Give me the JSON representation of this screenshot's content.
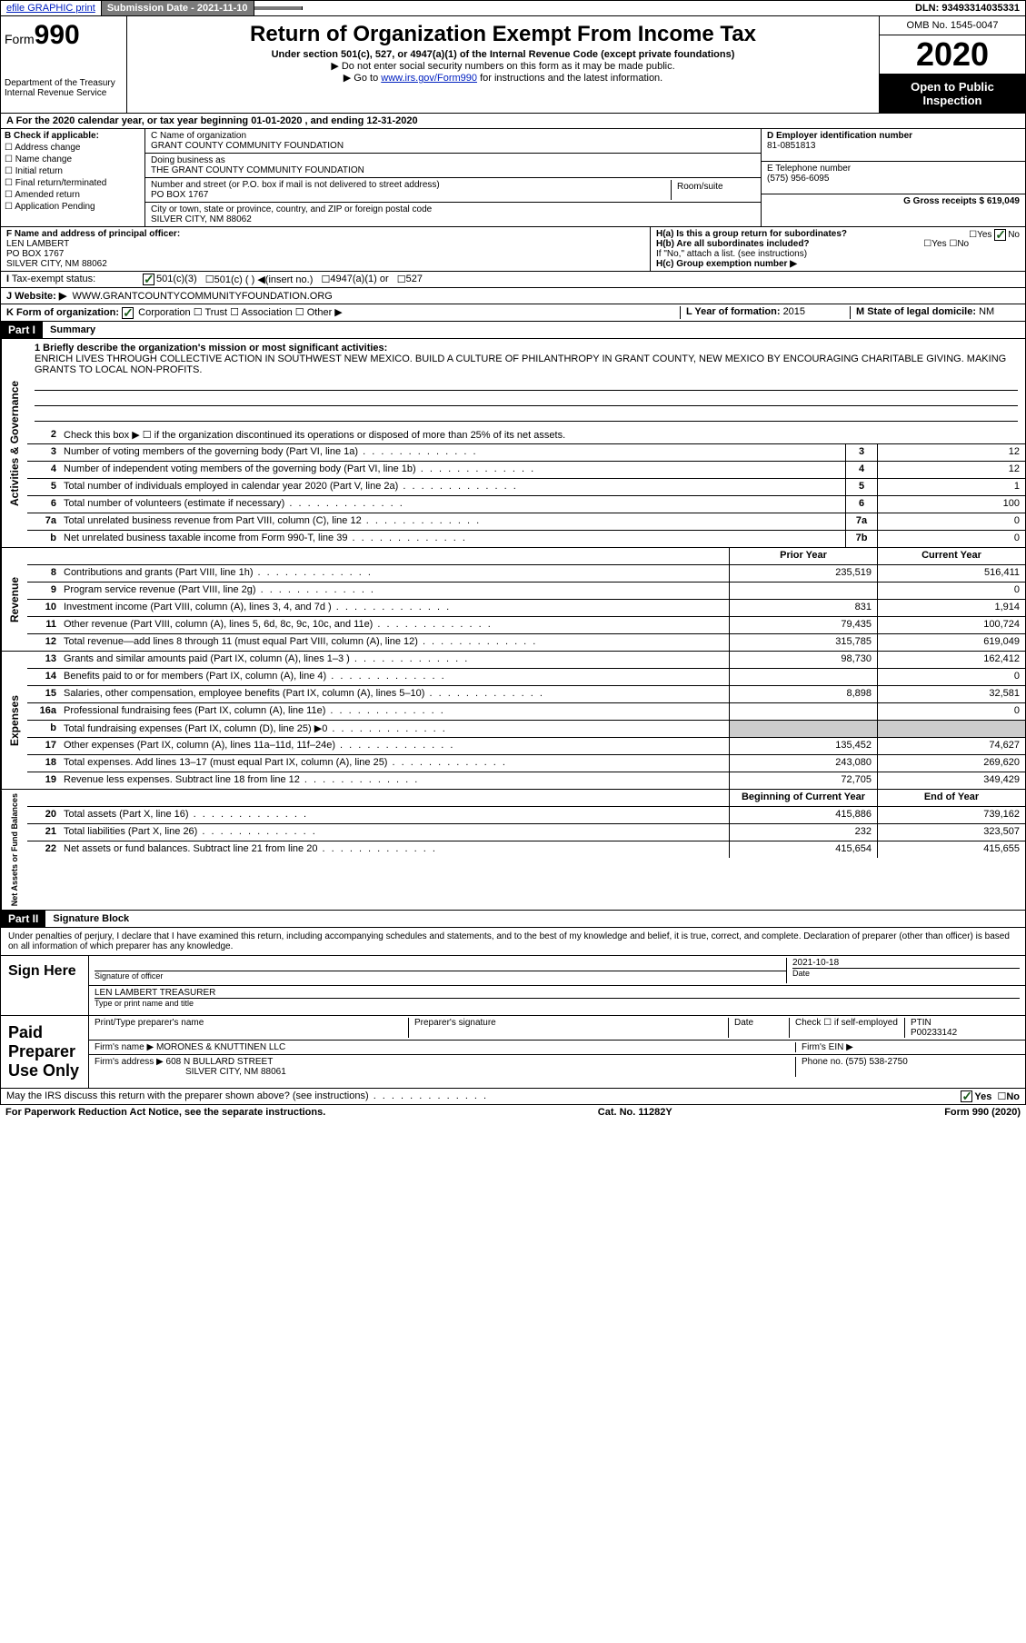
{
  "top_bar": {
    "efile": "efile GRAPHIC print",
    "submission_label": "Submission Date - 2021-11-10",
    "dln": "DLN: 93493314035331"
  },
  "header": {
    "form_prefix": "Form",
    "form_number": "990",
    "title": "Return of Organization Exempt From Income Tax",
    "subtitle": "Under section 501(c), 527, or 4947(a)(1) of the Internal Revenue Code (except private foundations)",
    "note1": "Do not enter social security numbers on this form as it may be made public.",
    "note2_prefix": "Go to ",
    "note2_link": "www.irs.gov/Form990",
    "note2_suffix": " for instructions and the latest information.",
    "dept": "Department of the Treasury\nInternal Revenue Service",
    "omb": "OMB No. 1545-0047",
    "year": "2020",
    "inspection": "Open to Public Inspection"
  },
  "row_a": "A For the 2020 calendar year, or tax year beginning 01-01-2020   , and ending 12-31-2020",
  "section_b": {
    "header": "B Check if applicable:",
    "items": [
      "Address change",
      "Name change",
      "Initial return",
      "Final return/terminated",
      "Amended return",
      "Application Pending"
    ]
  },
  "section_c": {
    "name_label": "C Name of organization",
    "name": "GRANT COUNTY COMMUNITY FOUNDATION",
    "dba_label": "Doing business as",
    "dba": "THE GRANT COUNTY COMMUNITY FOUNDATION",
    "addr_label": "Number and street (or P.O. box if mail is not delivered to street address)",
    "addr": "PO BOX 1767",
    "room_label": "Room/suite",
    "city_label": "City or town, state or province, country, and ZIP or foreign postal code",
    "city": "SILVER CITY, NM  88062"
  },
  "section_d": {
    "ein_label": "D Employer identification number",
    "ein": "81-0851813",
    "phone_label": "E Telephone number",
    "phone": "(575) 956-6095",
    "receipts_label": "G Gross receipts $ ",
    "receipts": "619,049"
  },
  "section_f": {
    "label": "F  Name and address of principal officer:",
    "name": "LEN LAMBERT",
    "addr1": "PO BOX 1767",
    "addr2": "SILVER CITY, NM  88062"
  },
  "section_h": {
    "ha": "H(a)  Is this a group return for subordinates?",
    "ha_yes": "Yes",
    "ha_no": "No",
    "hb": "H(b)  Are all subordinates included?",
    "hb_yes": "Yes",
    "hb_no": "No",
    "hb_note": "If \"No,\" attach a list. (see instructions)",
    "hc": "H(c)  Group exemption number ▶"
  },
  "tax_status": {
    "label": "Tax-exempt status:",
    "opt1": "501(c)(3)",
    "opt2": "501(c) (  ) ◀(insert no.)",
    "opt3": "4947(a)(1) or",
    "opt4": "527"
  },
  "website": {
    "label": "J    Website: ▶",
    "value": "WWW.GRANTCOUNTYCOMMUNITYFOUNDATION.ORG"
  },
  "section_k": {
    "label": "K Form of organization:",
    "opts": [
      "Corporation",
      "Trust",
      "Association",
      "Other ▶"
    ],
    "l_label": "L Year of formation: ",
    "l_value": "2015",
    "m_label": "M State of legal domicile: ",
    "m_value": "NM"
  },
  "part1": {
    "header": "Part I",
    "title": "Summary",
    "mission_label": "1  Briefly describe the organization's mission or most significant activities:",
    "mission": "ENRICH LIVES THROUGH COLLECTIVE ACTION IN SOUTHWEST NEW MEXICO. BUILD A CULTURE OF PHILANTHROPY IN GRANT COUNTY, NEW MEXICO BY ENCOURAGING CHARITABLE GIVING. MAKING GRANTS TO LOCAL NON-PROFITS.",
    "line2": "Check this box ▶ ☐  if the organization discontinued its operations or disposed of more than 25% of its net assets."
  },
  "governance": {
    "side_label": "Activities & Governance",
    "rows": [
      {
        "num": "3",
        "desc": "Number of voting members of the governing body (Part VI, line 1a)",
        "box": "3",
        "val": "12"
      },
      {
        "num": "4",
        "desc": "Number of independent voting members of the governing body (Part VI, line 1b)",
        "box": "4",
        "val": "12"
      },
      {
        "num": "5",
        "desc": "Total number of individuals employed in calendar year 2020 (Part V, line 2a)",
        "box": "5",
        "val": "1"
      },
      {
        "num": "6",
        "desc": "Total number of volunteers (estimate if necessary)",
        "box": "6",
        "val": "100"
      },
      {
        "num": "7a",
        "desc": "Total unrelated business revenue from Part VIII, column (C), line 12",
        "box": "7a",
        "val": "0"
      },
      {
        "num": "b",
        "desc": "Net unrelated business taxable income from Form 990-T, line 39",
        "box": "7b",
        "val": "0"
      }
    ]
  },
  "revenue": {
    "side_label": "Revenue",
    "header_prior": "Prior Year",
    "header_current": "Current Year",
    "rows": [
      {
        "num": "8",
        "desc": "Contributions and grants (Part VIII, line 1h)",
        "prior": "235,519",
        "current": "516,411"
      },
      {
        "num": "9",
        "desc": "Program service revenue (Part VIII, line 2g)",
        "prior": "",
        "current": "0"
      },
      {
        "num": "10",
        "desc": "Investment income (Part VIII, column (A), lines 3, 4, and 7d )",
        "prior": "831",
        "current": "1,914"
      },
      {
        "num": "11",
        "desc": "Other revenue (Part VIII, column (A), lines 5, 6d, 8c, 9c, 10c, and 11e)",
        "prior": "79,435",
        "current": "100,724"
      },
      {
        "num": "12",
        "desc": "Total revenue—add lines 8 through 11 (must equal Part VIII, column (A), line 12)",
        "prior": "315,785",
        "current": "619,049"
      }
    ]
  },
  "expenses": {
    "side_label": "Expenses",
    "rows": [
      {
        "num": "13",
        "desc": "Grants and similar amounts paid (Part IX, column (A), lines 1–3 )",
        "prior": "98,730",
        "current": "162,412"
      },
      {
        "num": "14",
        "desc": "Benefits paid to or for members (Part IX, column (A), line 4)",
        "prior": "",
        "current": "0"
      },
      {
        "num": "15",
        "desc": "Salaries, other compensation, employee benefits (Part IX, column (A), lines 5–10)",
        "prior": "8,898",
        "current": "32,581"
      },
      {
        "num": "16a",
        "desc": "Professional fundraising fees (Part IX, column (A), line 11e)",
        "prior": "",
        "current": "0"
      },
      {
        "num": "b",
        "desc": "Total fundraising expenses (Part IX, column (D), line 25) ▶0",
        "prior": "SHADED",
        "current": "SHADED"
      },
      {
        "num": "17",
        "desc": "Other expenses (Part IX, column (A), lines 11a–11d, 11f–24e)",
        "prior": "135,452",
        "current": "74,627"
      },
      {
        "num": "18",
        "desc": "Total expenses. Add lines 13–17 (must equal Part IX, column (A), line 25)",
        "prior": "243,080",
        "current": "269,620"
      },
      {
        "num": "19",
        "desc": "Revenue less expenses. Subtract line 18 from line 12",
        "prior": "72,705",
        "current": "349,429"
      }
    ]
  },
  "netassets": {
    "side_label": "Net Assets or Fund Balances",
    "header_prior": "Beginning of Current Year",
    "header_current": "End of Year",
    "rows": [
      {
        "num": "20",
        "desc": "Total assets (Part X, line 16)",
        "prior": "415,886",
        "current": "739,162"
      },
      {
        "num": "21",
        "desc": "Total liabilities (Part X, line 26)",
        "prior": "232",
        "current": "323,507"
      },
      {
        "num": "22",
        "desc": "Net assets or fund balances. Subtract line 21 from line 20",
        "prior": "415,654",
        "current": "415,655"
      }
    ]
  },
  "part2": {
    "header": "Part II",
    "title": "Signature Block",
    "declaration": "Under penalties of perjury, I declare that I have examined this return, including accompanying schedules and statements, and to the best of my knowledge and belief, it is true, correct, and complete. Declaration of preparer (other than officer) is based on all information of which preparer has any knowledge."
  },
  "sign_here": {
    "label": "Sign Here",
    "sig_label": "Signature of officer",
    "date_label": "Date",
    "date": "2021-10-18",
    "name": "LEN LAMBERT TREASURER",
    "name_label": "Type or print name and title"
  },
  "paid_preparer": {
    "label": "Paid Preparer Use Only",
    "col1": "Print/Type preparer's name",
    "col2": "Preparer's signature",
    "col3": "Date",
    "check_label": "Check ☐ if self-employed",
    "ptin_label": "PTIN",
    "ptin": "P00233142",
    "firm_name_label": "Firm's name    ▶",
    "firm_name": "MORONES & KNUTTINEN LLC",
    "firm_ein_label": "Firm's EIN ▶",
    "firm_addr_label": "Firm's address ▶",
    "firm_addr1": "608 N BULLARD STREET",
    "firm_addr2": "SILVER CITY, NM  88061",
    "firm_phone_label": "Phone no. ",
    "firm_phone": "(575) 538-2750"
  },
  "discuss": {
    "text": "May the IRS discuss this return with the preparer shown above? (see instructions)",
    "yes": "Yes",
    "no": "No"
  },
  "footer": {
    "left": "For Paperwork Reduction Act Notice, see the separate instructions.",
    "mid": "Cat. No. 11282Y",
    "right": "Form 990 (2020)"
  },
  "colors": {
    "link": "#0020c0",
    "dark_btn": "#7a7a7a",
    "check_green": "#1a5c1a"
  }
}
